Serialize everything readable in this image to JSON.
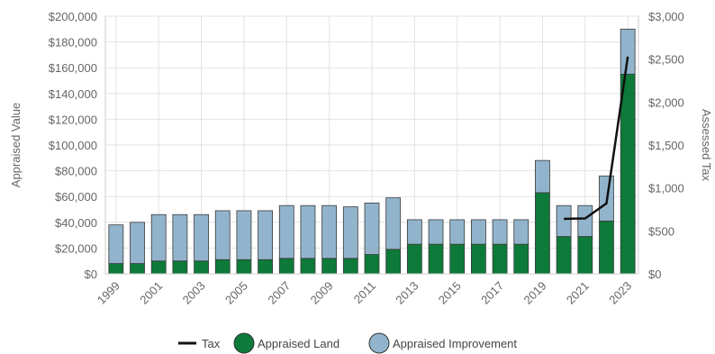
{
  "chart_data": {
    "type": "bar",
    "subtype": "stacked bar with line on secondary axis",
    "categories": [
      "1999",
      "2000",
      "2001",
      "2002",
      "2003",
      "2004",
      "2005",
      "2006",
      "2007",
      "2008",
      "2009",
      "2010",
      "2011",
      "2012",
      "2013",
      "2014",
      "2015",
      "2016",
      "2017",
      "2018",
      "2019",
      "2020",
      "2021",
      "2022",
      "2023"
    ],
    "x_tick_labels": [
      "1999",
      "2001",
      "2003",
      "2005",
      "2007",
      "2009",
      "2011",
      "2013",
      "2015",
      "2017",
      "2019",
      "2021",
      "2023"
    ],
    "series": [
      {
        "name": "Appraised Land",
        "axis": "left",
        "color": "#0d7a3a",
        "values": [
          8000,
          8000,
          10000,
          10000,
          10000,
          11000,
          11000,
          11000,
          12000,
          12000,
          12000,
          12000,
          15000,
          19000,
          23000,
          23000,
          23000,
          23000,
          23000,
          23000,
          63000,
          29000,
          29000,
          41000,
          155000
        ]
      },
      {
        "name": "Appraised Improvement",
        "axis": "left",
        "color": "#91b4cc",
        "values": [
          30000,
          32000,
          36000,
          36000,
          36000,
          38000,
          38000,
          38000,
          41000,
          41000,
          41000,
          40000,
          40000,
          40000,
          19000,
          19000,
          19000,
          19000,
          19000,
          19000,
          25000,
          24000,
          24000,
          35000,
          35000
        ]
      },
      {
        "name": "Tax",
        "type": "line",
        "axis": "right",
        "color": "#111111",
        "values": [
          null,
          null,
          null,
          null,
          null,
          null,
          null,
          null,
          null,
          null,
          null,
          null,
          null,
          null,
          null,
          null,
          null,
          null,
          null,
          null,
          null,
          640,
          645,
          820,
          2530
        ]
      }
    ],
    "ylabel": "Appraised Value",
    "y2label": "Assessed Tax",
    "ylim": [
      0,
      200000
    ],
    "y2lim": [
      0,
      3000
    ],
    "y_ticks": [
      "$0",
      "$20,000",
      "$40,000",
      "$60,000",
      "$80,000",
      "$100,000",
      "$120,000",
      "$140,000",
      "$160,000",
      "$180,000",
      "$200,000"
    ],
    "y2_ticks": [
      "$0",
      "$500",
      "$1,000",
      "$1,500",
      "$2,000",
      "$2,500",
      "$3,000"
    ],
    "grid": true,
    "legend_position": "bottom-center",
    "legend": [
      "Tax",
      "Appraised Land",
      "Appraised Improvement"
    ]
  }
}
